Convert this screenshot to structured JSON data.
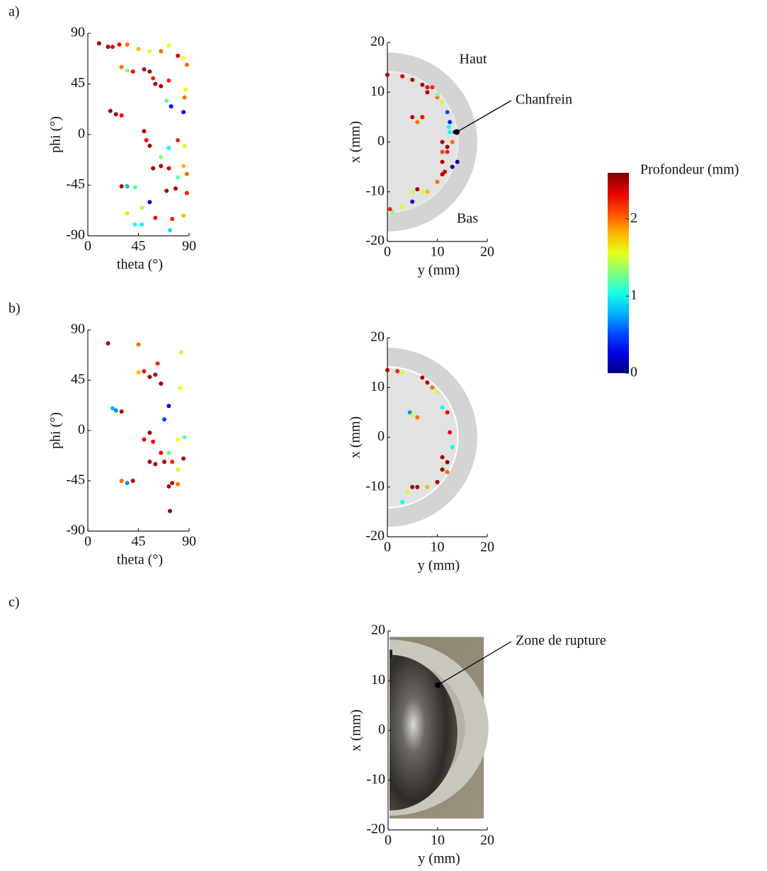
{
  "panel_labels": [
    "a)",
    "b)",
    "c)"
  ],
  "colorbar": {
    "label": "Profondeur (mm)",
    "clim": [
      0,
      2.6
    ],
    "ticks": [
      0,
      1,
      2
    ]
  },
  "chart_data": [
    {
      "type": "scatter",
      "xlabel": "theta (°)",
      "ylabel": "phi (°)",
      "xlim": [
        0,
        90
      ],
      "ylim": [
        -90,
        90
      ],
      "xticks": [
        0,
        45,
        90
      ],
      "yticks": [
        -90,
        -45,
        0,
        45,
        90
      ],
      "x": [
        10,
        18,
        22,
        28,
        35,
        45,
        55,
        65,
        72,
        80,
        85,
        88,
        30,
        35,
        40,
        50,
        55,
        58,
        60,
        65,
        72,
        87,
        86,
        70,
        74,
        85,
        20,
        25,
        30,
        50,
        52,
        55,
        80,
        86,
        72,
        65,
        58,
        65,
        72,
        85,
        88,
        80,
        30,
        35,
        42,
        70,
        78,
        88,
        55,
        35,
        48,
        60,
        75,
        42,
        48,
        73,
        85
      ],
      "values": [
        81,
        78,
        78,
        80,
        80,
        76,
        74,
        74,
        79,
        70,
        68,
        62,
        60,
        57,
        56,
        58,
        56,
        50,
        45,
        43,
        48,
        40,
        33,
        30,
        25,
        20,
        21,
        18,
        17,
        3,
        -5,
        -10,
        -5,
        -10,
        -12,
        -20,
        -30,
        -28,
        -30,
        -28,
        -35,
        -38,
        -46,
        -46,
        -47,
        -50,
        -48,
        -52,
        -60,
        -70,
        -65,
        -74,
        -75,
        -80,
        -80,
        -85,
        -72
      ],
      "depth": [
        2.5,
        2.5,
        2.3,
        2.3,
        2,
        1.8,
        1.5,
        2,
        1.5,
        2.4,
        1.6,
        2,
        2,
        1.3,
        2.3,
        2.5,
        2.5,
        2.2,
        2.5,
        2.5,
        2.2,
        1.6,
        2,
        1.2,
        0.3,
        0.3,
        2.5,
        2.5,
        2.3,
        2.5,
        2.3,
        2.5,
        2.2,
        1.5,
        1,
        1.3,
        2.5,
        2.5,
        2.4,
        1.8,
        2,
        1.2,
        2.5,
        0.8,
        1.2,
        2.5,
        2.5,
        2.2,
        0.2,
        1.7,
        1.4,
        2.3,
        2.2,
        1,
        1,
        0.9,
        1.8
      ]
    },
    {
      "type": "disk",
      "xlabel": "y (mm)",
      "ylabel": "x (mm)",
      "xlim": [
        0,
        20
      ],
      "ylim": [
        -20,
        20
      ],
      "xticks": [
        0,
        10,
        20
      ],
      "yticks": [
        -20,
        -10,
        0,
        10,
        20
      ],
      "x": [
        0,
        3,
        5,
        7,
        8,
        10,
        11,
        12,
        12.5,
        12.5,
        13,
        12,
        11,
        11.5,
        10,
        8,
        5,
        3,
        1,
        0.5,
        5,
        6,
        7,
        11,
        11,
        12,
        11,
        5,
        7,
        6,
        9,
        8,
        10,
        13,
        14,
        12.3,
        13.5
      ],
      "values": [
        13.5,
        13.2,
        12.5,
        11.5,
        11,
        9,
        8,
        6,
        4,
        2,
        0,
        -2,
        -4,
        -6,
        -8,
        -10,
        -12,
        -13,
        -14,
        -13.5,
        5,
        4,
        5,
        -6.5,
        0,
        -1,
        -2,
        -10,
        -10,
        -9.5,
        11,
        10,
        9.5,
        -5,
        -4,
        3,
        2
      ],
      "depth": [
        2.5,
        2.4,
        2.5,
        2.5,
        2.3,
        2,
        1.5,
        0.5,
        0.4,
        1,
        2,
        2.2,
        2.5,
        2.4,
        2,
        1.8,
        0.2,
        1.5,
        1.3,
        2.2,
        2.5,
        2,
        2.3,
        2.5,
        2.5,
        2.5,
        2.1,
        1.5,
        1.5,
        2.5,
        2.2,
        2.5,
        1.3,
        0.1,
        0.1,
        1,
        0.3
      ],
      "annotations": [
        {
          "text": "Haut"
        },
        {
          "text": "Bas"
        },
        {
          "text": "Chanfrein",
          "x": 13.9,
          "y": 2
        }
      ]
    },
    {
      "type": "scatter",
      "xlabel": "theta (°)",
      "ylabel": "phi (°)",
      "xlim": [
        0,
        90
      ],
      "ylim": [
        -90,
        90
      ],
      "xticks": [
        0,
        45,
        90
      ],
      "yticks": [
        -90,
        -45,
        0,
        45,
        90
      ],
      "x": [
        18,
        45,
        83,
        50,
        45,
        55,
        60,
        62,
        65,
        82,
        22,
        25,
        30,
        72,
        68,
        55,
        58,
        80,
        86,
        50,
        65,
        72,
        55,
        60,
        68,
        75,
        85,
        80,
        30,
        35,
        40,
        72,
        75,
        80,
        73
      ],
      "values": [
        78,
        77,
        70,
        53,
        52,
        48,
        50,
        60,
        42,
        38,
        20,
        18,
        17,
        22,
        10,
        -2,
        -10,
        -8,
        -6,
        -8,
        -20,
        -20,
        -28,
        -30,
        -28,
        -28,
        -25,
        -35,
        -45,
        -47,
        -45,
        -50,
        -47,
        -48,
        -72
      ],
      "depth": [
        2.5,
        2,
        1.5,
        2.3,
        1.8,
        2.5,
        2.5,
        2.2,
        2.5,
        1.6,
        0.8,
        0.7,
        2.5,
        0.3,
        0.5,
        2.5,
        2.3,
        1.6,
        1.2,
        2.3,
        2.3,
        1.2,
        2.5,
        2.5,
        2.5,
        2.2,
        2.5,
        1.5,
        2,
        0.7,
        2.5,
        2.5,
        2.4,
        2,
        2.5
      ]
    },
    {
      "type": "disk",
      "xlabel": "y (mm)",
      "ylabel": "x (mm)",
      "xlim": [
        0,
        20
      ],
      "ylim": [
        -20,
        20
      ],
      "xticks": [
        0,
        10,
        20
      ],
      "yticks": [
        -20,
        -10,
        0,
        10,
        20
      ],
      "x": [
        0,
        2,
        3,
        7,
        8,
        9,
        10,
        11,
        12,
        12.5,
        13,
        11,
        12,
        11,
        12,
        10,
        8,
        6,
        5,
        3,
        4.5,
        5,
        6,
        4
      ],
      "values": [
        13.5,
        13.3,
        13,
        12,
        11,
        10,
        9,
        6,
        5,
        1,
        -2,
        -4,
        -5,
        -6.5,
        -7,
        -9,
        -10,
        -10,
        -10,
        -13,
        5,
        4.5,
        4,
        -11
      ],
      "depth": [
        2.5,
        2.2,
        1.5,
        2.5,
        2.5,
        2,
        1.5,
        1,
        2.3,
        2.3,
        1,
        2.5,
        2.5,
        2.5,
        2,
        2.5,
        1.8,
        2.5,
        2.5,
        1,
        0.7,
        1.5,
        2,
        1.5
      ]
    },
    {
      "type": "photo",
      "xlabel": "y (mm)",
      "ylabel": "x (mm)",
      "xlim": [
        0,
        20
      ],
      "ylim": [
        -20,
        20
      ],
      "xticks": [
        0,
        10,
        20
      ],
      "yticks": [
        -20,
        -10,
        0,
        10,
        20
      ],
      "annotations": [
        {
          "text": "Zone de rupture",
          "x": 10,
          "y": 9.1
        }
      ]
    }
  ]
}
